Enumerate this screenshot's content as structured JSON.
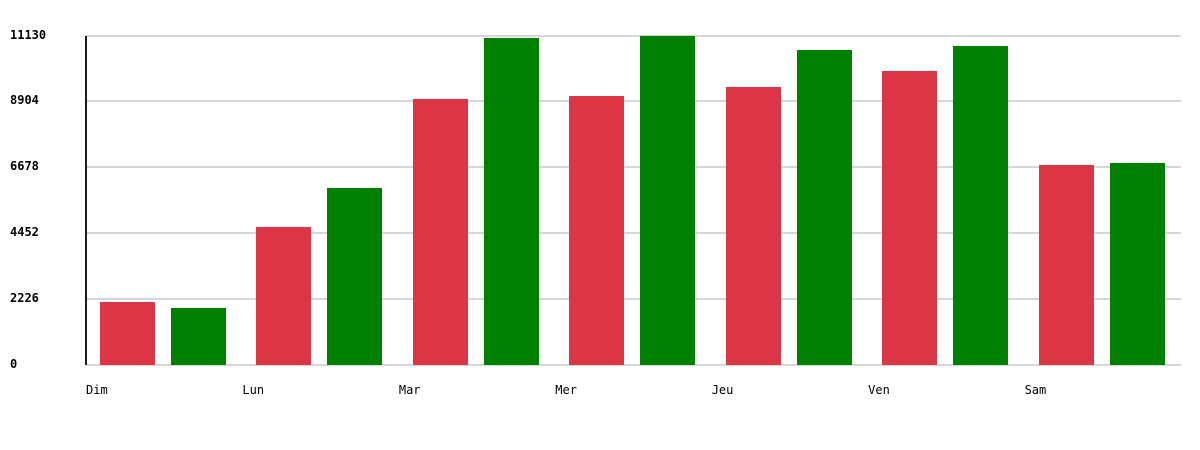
{
  "chart_data": {
    "type": "bar",
    "title": "",
    "categories": [
      "Dim",
      "Lun",
      "Mar",
      "Mer",
      "Jeu",
      "Ven",
      "Sam"
    ],
    "series": [
      {
        "name": "red",
        "color": "#dc3545",
        "values": [
          2120,
          4660,
          8970,
          9080,
          9400,
          9940,
          6740
        ]
      },
      {
        "name": "green",
        "color": "#008000",
        "values": [
          1940,
          5990,
          11040,
          11130,
          10650,
          10760,
          6820
        ]
      }
    ],
    "yticks": [
      0,
      2226,
      4452,
      6678,
      8904,
      11130
    ],
    "ylim": [
      0,
      11130
    ],
    "xlabel": "",
    "ylabel": "",
    "grid": true,
    "legend": false,
    "gridline_color": "#d6d6d6",
    "axis_color": "#1a1a1a",
    "background": "#ffffff"
  }
}
